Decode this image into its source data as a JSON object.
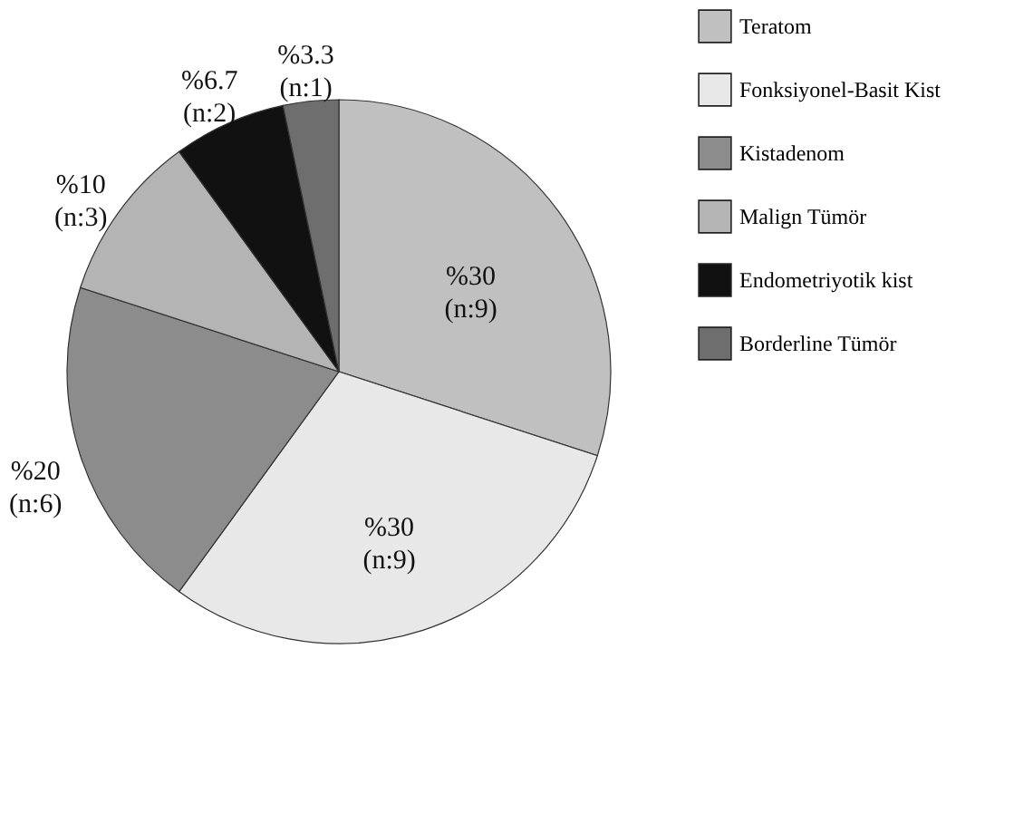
{
  "chart_data": {
    "type": "pie",
    "categories": [
      "Teratom",
      "Fonksiyonel-Basit Kist",
      "Kistadenom",
      "Malign Tümör",
      "Endometriyotik kist",
      "Borderline Tümör"
    ],
    "values": [
      30,
      30,
      20,
      10,
      6.7,
      3.3
    ],
    "colors": [
      "#c0c0c0",
      "#e8e8e8",
      "#8c8c8c",
      "#b4b4b4",
      "#111111",
      "#6e6e6e"
    ],
    "value_labels": [
      "%30 (n:9)",
      "%30 (n:9)",
      "%20 (n:6)",
      "%10 (n:3)",
      "%6.7 (n:2)",
      "%3.3 (n:1)"
    ],
    "legend": "right"
  }
}
